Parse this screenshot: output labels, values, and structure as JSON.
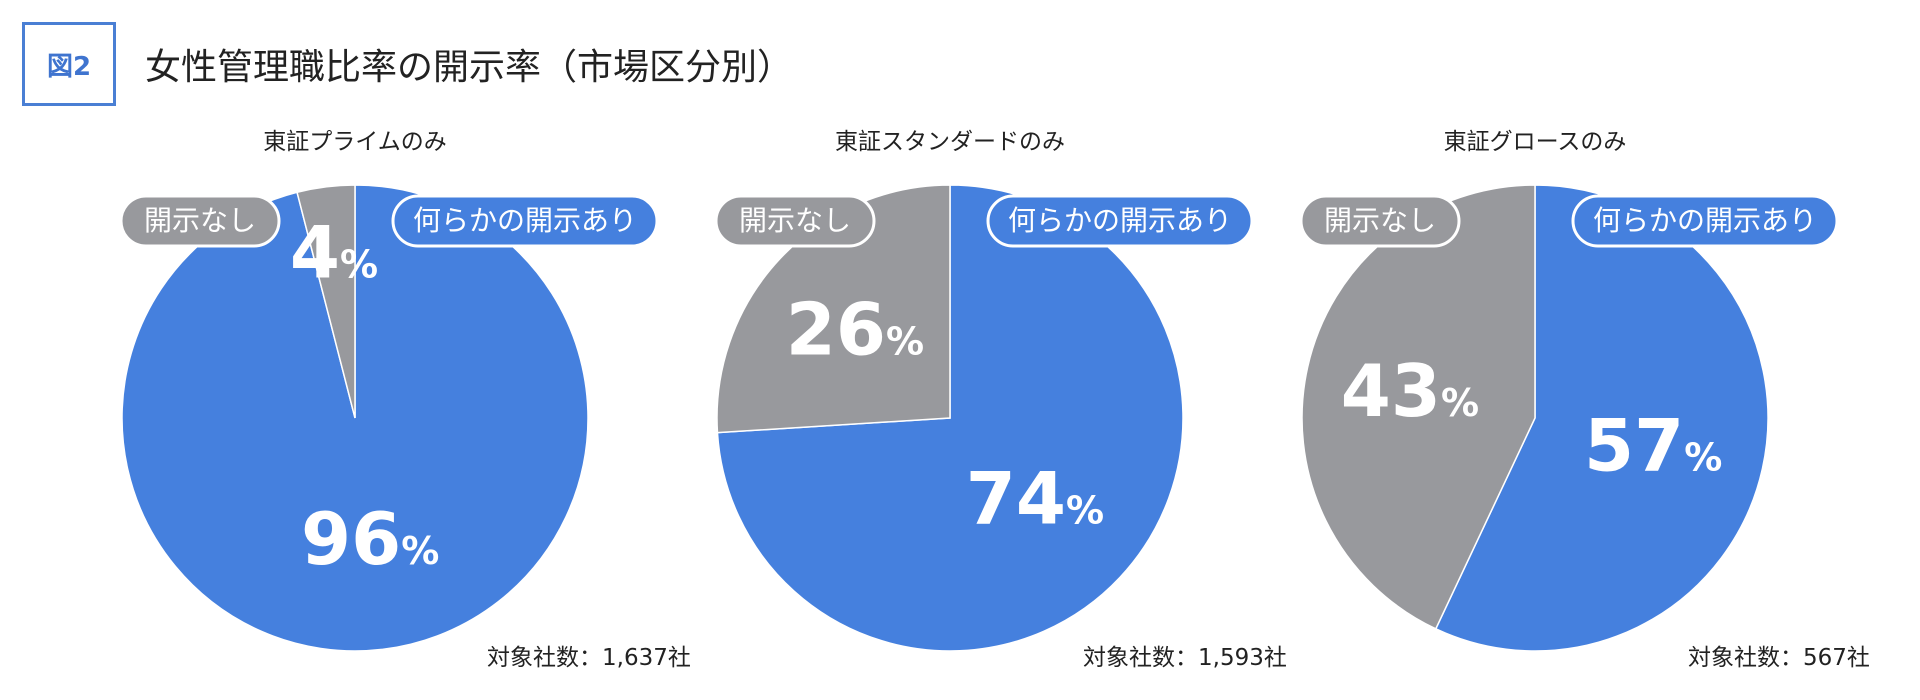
{
  "figure": {
    "badge": "図2",
    "title": "女性管理職比率の開示率（市場区分別）"
  },
  "legend_labels": {
    "disclosed": "何らかの開示あり",
    "not_disclosed": "開示なし"
  },
  "colors": {
    "disclosed": "#4580de",
    "not_disclosed": "#98999d",
    "badge": "#4a7fd4"
  },
  "chart_data": [
    {
      "type": "pie",
      "title": "東証プライムのみ",
      "slices": [
        {
          "label": "何らかの開示あり",
          "value": 96,
          "display": "96"
        },
        {
          "label": "開示なし",
          "value": 4,
          "display": "4"
        }
      ],
      "unit": "%",
      "total_label": "対象社数：1,637社"
    },
    {
      "type": "pie",
      "title": "東証スタンダードのみ",
      "slices": [
        {
          "label": "何らかの開示あり",
          "value": 74,
          "display": "74"
        },
        {
          "label": "開示なし",
          "value": 26,
          "display": "26"
        }
      ],
      "unit": "%",
      "total_label": "対象社数：1,593社"
    },
    {
      "type": "pie",
      "title": "東証グロースのみ",
      "slices": [
        {
          "label": "何らかの開示あり",
          "value": 57,
          "display": "57"
        },
        {
          "label": "開示なし",
          "value": 43,
          "display": "43"
        }
      ],
      "unit": "%",
      "total_label": "対象社数：567社"
    }
  ]
}
